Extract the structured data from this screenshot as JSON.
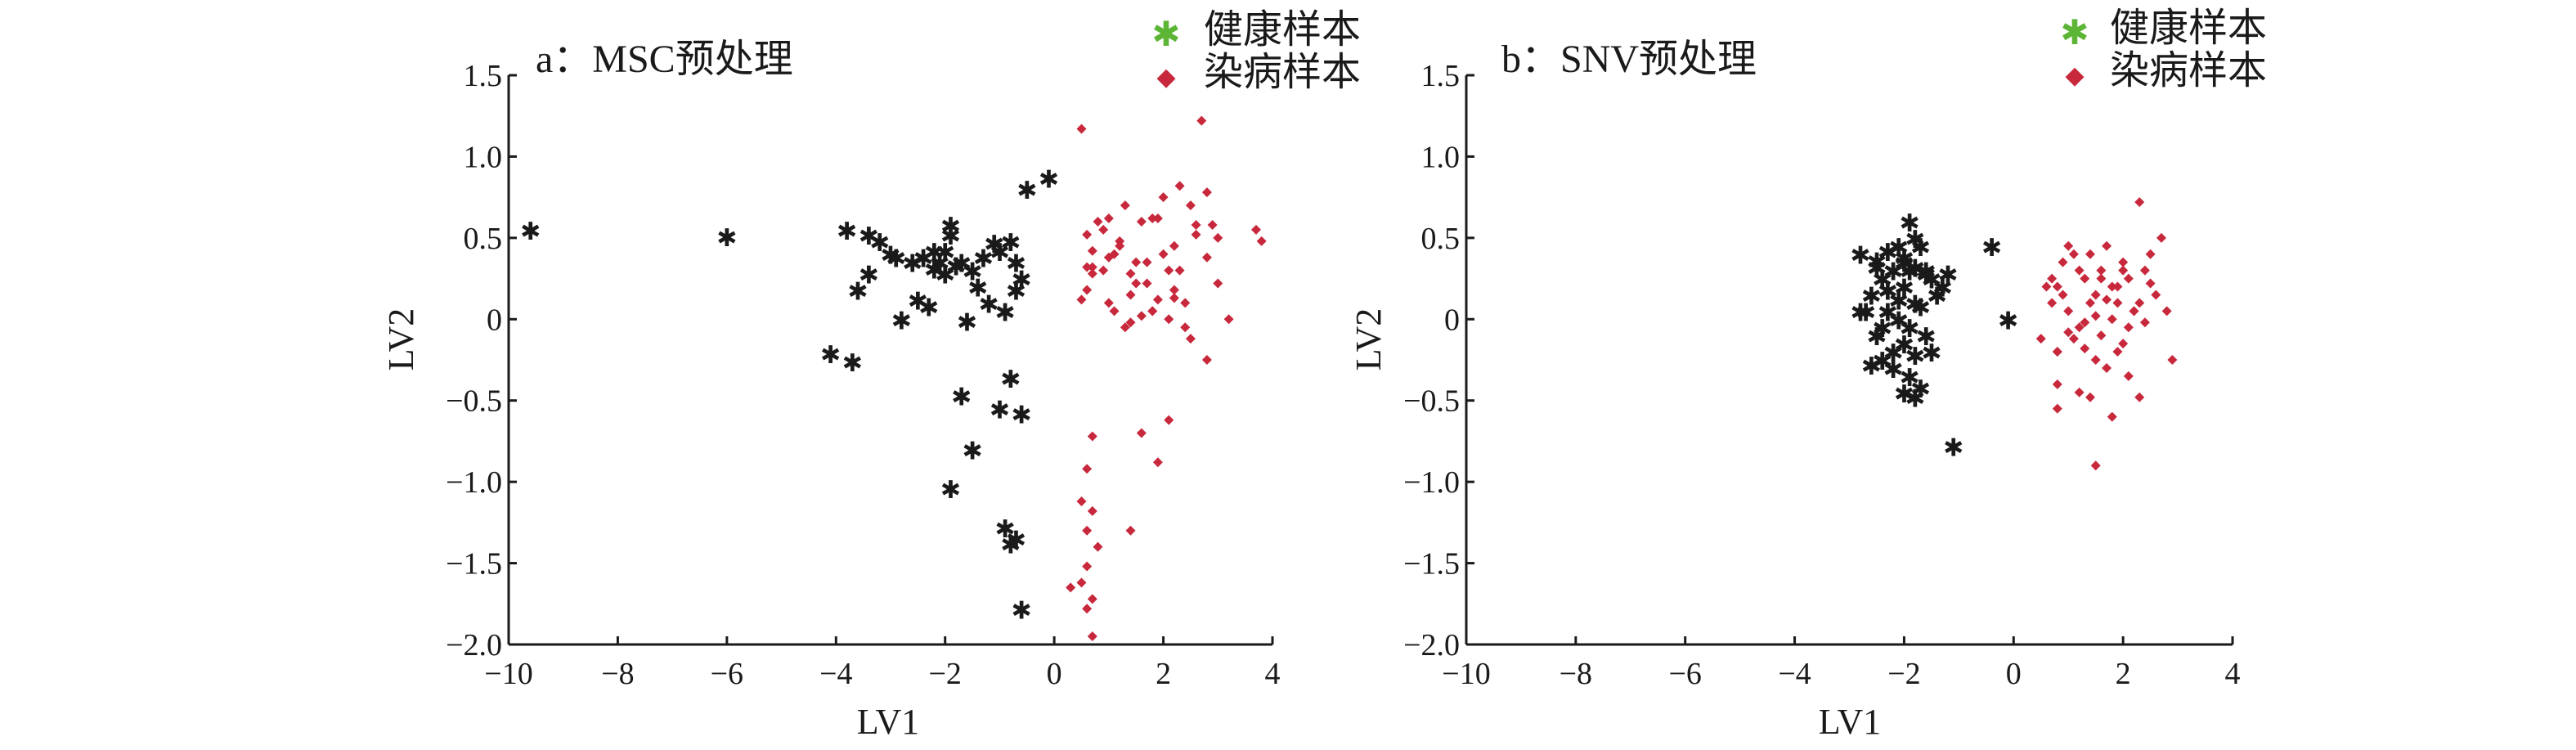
{
  "colors": {
    "healthy": "#5db535",
    "diseased": "#c8283c",
    "axis": "#1a1a1a"
  },
  "chart_data": [
    {
      "type": "scatter",
      "title": "a：MSC预处理",
      "xlabel": "LV1",
      "ylabel": "LV2",
      "xlim": [
        -10,
        4
      ],
      "ylim": [
        -2.0,
        1.5
      ],
      "xticks": [
        "−10",
        "−8",
        "−6",
        "−4",
        "−2",
        "0",
        "2",
        "4"
      ],
      "yticks": [
        "−2.0",
        "−1.5",
        "−1.0",
        "−0.5",
        "0",
        "0.5",
        "1.0",
        "1.5"
      ],
      "grid": false,
      "legend": "top-right",
      "series": [
        {
          "name": "健康样本",
          "marker": "star",
          "x": [
            -9.6,
            -6.0,
            -3.8,
            -3.4,
            -3.2,
            -3.0,
            -2.9,
            -3.6,
            -3.4,
            -2.6,
            -2.4,
            -2.2,
            -2.0,
            -2.1,
            -1.9,
            -2.3,
            -1.8,
            -1.7,
            -1.5,
            -1.3,
            -1.1,
            -1.0,
            -0.8,
            -0.6,
            -0.7,
            -1.2,
            -0.9,
            -1.4,
            -1.6,
            -1.9,
            -2.2,
            -2.5,
            -2.8,
            -4.1,
            -3.7,
            -0.8,
            -1.0,
            -0.6,
            -1.5,
            -1.9,
            -1.7,
            -0.9,
            -0.7,
            -0.6,
            -0.8,
            -0.1,
            -0.7,
            -0.5,
            -2.0
          ],
          "y": [
            0.55,
            0.51,
            0.55,
            0.52,
            0.48,
            0.4,
            0.38,
            0.18,
            0.28,
            0.35,
            0.38,
            0.31,
            0.42,
            0.35,
            0.58,
            0.08,
            0.33,
            0.35,
            0.3,
            0.38,
            0.47,
            0.42,
            0.48,
            0.25,
            0.18,
            0.1,
            0.05,
            0.2,
            -0.01,
            0.52,
            0.42,
            0.12,
            0.0,
            -0.21,
            -0.26,
            -0.36,
            -0.55,
            -0.58,
            -0.8,
            -1.04,
            -0.47,
            -1.28,
            -1.35,
            -1.78,
            -1.38,
            0.87,
            0.35,
            0.8,
            0.28
          ]
        },
        {
          "name": "染病样本",
          "marker": "diamond",
          "x": [
            0.5,
            0.7,
            0.9,
            1.0,
            1.1,
            1.2,
            1.3,
            1.4,
            1.5,
            1.6,
            1.7,
            1.8,
            1.9,
            2.0,
            2.1,
            2.2,
            2.3,
            2.4,
            2.5,
            2.6,
            2.7,
            2.8,
            2.9,
            3.0,
            3.2,
            3.7,
            3.8,
            0.6,
            0.8,
            1.0,
            1.2,
            1.4,
            1.6,
            1.8,
            2.0,
            2.2,
            2.4,
            2.6,
            3.0,
            0.7,
            1.1,
            1.5,
            1.9,
            2.3,
            2.8,
            0.5,
            0.9,
            1.3,
            1.7,
            2.1,
            2.5,
            0.6,
            1.0,
            1.4,
            1.8,
            2.2,
            0.7,
            0.6,
            0.5,
            0.7,
            0.6,
            0.8,
            0.6,
            0.5,
            0.3,
            0.7,
            0.6,
            0.7,
            1.4,
            1.9,
            2.1,
            1.6,
            0.7,
            0.6,
            2.8
          ],
          "y": [
            1.17,
            0.32,
            0.55,
            0.62,
            0.4,
            0.48,
            0.7,
            0.15,
            0.35,
            0.6,
            0.22,
            0.05,
            0.62,
            0.75,
            0.3,
            0.45,
            0.82,
            0.1,
            0.7,
            0.52,
            1.22,
            0.38,
            0.58,
            0.22,
            0.0,
            0.55,
            0.48,
            0.18,
            0.6,
            0.1,
            0.45,
            0.28,
            0.02,
            0.62,
            0.4,
            0.13,
            -0.05,
            0.58,
            0.5,
            0.42,
            0.05,
            0.22,
            0.12,
            0.3,
            0.78,
            0.12,
            0.3,
            -0.05,
            0.35,
            0.0,
            -0.12,
            0.52,
            0.38,
            -0.02,
            0.05,
            0.18,
            -0.72,
            -0.92,
            -1.12,
            -1.18,
            -1.3,
            -1.4,
            -1.52,
            -1.62,
            -1.65,
            -1.72,
            -1.78,
            -1.95,
            -1.3,
            -0.88,
            -0.62,
            -0.7,
            0.28,
            0.32,
            -0.25
          ]
        }
      ]
    },
    {
      "type": "scatter",
      "title": "b：SNV预处理",
      "xlabel": "LV1",
      "ylabel": "LV2",
      "xlim": [
        -10,
        4
      ],
      "ylim": [
        -2.0,
        1.5
      ],
      "xticks": [
        "−10",
        "−8",
        "−6",
        "−4",
        "−2",
        "0",
        "2",
        "4"
      ],
      "yticks": [
        "−2.0",
        "−1.5",
        "−1.0",
        "−0.5",
        "0",
        "0.5",
        "1.0",
        "1.5"
      ],
      "grid": false,
      "legend": "top-right",
      "series": [
        {
          "name": "健康样本",
          "marker": "star",
          "x": [
            -2.8,
            -2.5,
            -2.3,
            -2.1,
            -2.0,
            -1.9,
            -1.8,
            -1.7,
            -2.2,
            -2.4,
            -2.6,
            -2.0,
            -1.8,
            -1.6,
            -1.5,
            -1.3,
            -1.2,
            -2.3,
            -2.1,
            -1.9,
            -1.7,
            -2.5,
            -2.7,
            -2.2,
            -2.0,
            -1.8,
            -1.6,
            -2.4,
            -2.2,
            -1.9,
            -1.7,
            -1.5,
            -2.6,
            -2.0,
            -1.8,
            -2.1,
            -2.3,
            -1.9,
            -0.4,
            -0.1,
            -1.1,
            -2.0,
            -1.8,
            -1.6,
            -1.4,
            -2.5,
            -2.8,
            -2.4
          ],
          "y": [
            0.4,
            0.36,
            0.42,
            0.45,
            0.35,
            0.6,
            0.5,
            0.45,
            0.3,
            0.25,
            0.15,
            0.2,
            0.1,
            0.3,
            0.25,
            0.2,
            0.28,
            0.05,
            0.0,
            -0.05,
            0.08,
            -0.1,
            0.05,
            -0.2,
            -0.15,
            -0.22,
            -0.1,
            -0.25,
            -0.3,
            -0.35,
            -0.42,
            -0.2,
            -0.28,
            -0.45,
            -0.48,
            0.12,
            0.18,
            0.3,
            0.45,
            0.0,
            -0.78,
            0.38,
            0.32,
            0.28,
            0.15,
            0.32,
            0.05,
            -0.05
          ]
        },
        {
          "name": "染病样本",
          "marker": "diamond",
          "x": [
            0.5,
            0.7,
            0.8,
            0.9,
            1.0,
            1.1,
            1.2,
            1.3,
            1.4,
            1.5,
            1.6,
            1.7,
            1.8,
            1.9,
            2.0,
            2.1,
            2.2,
            2.3,
            2.4,
            2.5,
            2.6,
            2.7,
            2.8,
            2.9,
            1.0,
            1.2,
            1.4,
            1.6,
            1.8,
            2.0,
            2.2,
            0.6,
            0.8,
            1.0,
            1.3,
            1.5,
            1.7,
            1.9,
            2.1,
            2.3,
            2.5,
            0.7,
            0.9,
            1.1,
            1.3,
            1.5,
            1.7,
            1.9,
            2.1,
            0.8,
            1.2,
            1.6,
            2.0,
            2.4,
            0.8,
            1.4,
            1.8,
            2.3,
            1.5,
            0.8
          ],
          "y": [
            -0.12,
            0.1,
            0.2,
            0.35,
            0.45,
            0.4,
            0.3,
            0.25,
            0.4,
            0.15,
            0.3,
            0.45,
            0.2,
            0.1,
            0.35,
            0.25,
            0.05,
            0.72,
            0.3,
            0.4,
            0.15,
            0.5,
            0.05,
            -0.25,
            0.05,
            -0.05,
            0.1,
            -0.1,
            0.0,
            -0.15,
            0.05,
            0.2,
            -0.2,
            -0.08,
            -0.18,
            -0.25,
            -0.3,
            0.2,
            -0.05,
            0.1,
            0.22,
            0.25,
            0.15,
            -0.12,
            -0.02,
            0.02,
            0.12,
            -0.2,
            -0.35,
            -0.4,
            -0.45,
            0.25,
            0.3,
            -0.02,
            -0.55,
            -0.48,
            -0.6,
            -0.48,
            -0.9,
            -0.2
          ]
        }
      ]
    }
  ]
}
